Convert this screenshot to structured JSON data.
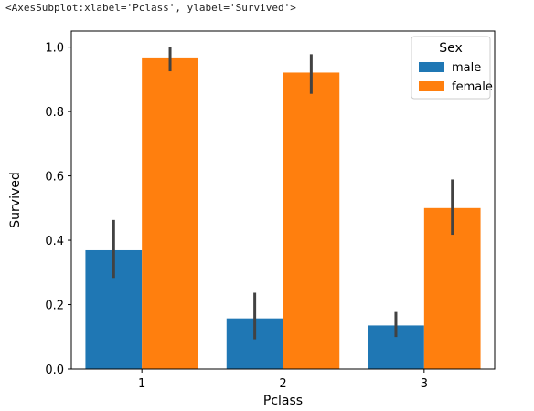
{
  "output_repr": "<AxesSubplot:xlabel='Pclass', ylabel='Survived'>",
  "chart_data": {
    "type": "bar",
    "title": "",
    "xlabel": "Pclass",
    "ylabel": "Survived",
    "categories": [
      "1",
      "2",
      "3"
    ],
    "ylim": [
      0,
      1.05
    ],
    "yticks": [
      0.0,
      0.2,
      0.4,
      0.6,
      0.8,
      1.0
    ],
    "ytick_labels": [
      "0.0",
      "0.2",
      "0.4",
      "0.6",
      "0.8",
      "1.0"
    ],
    "grid": false,
    "legend": {
      "title": "Sex",
      "placement": "top-right"
    },
    "series": [
      {
        "name": "male",
        "color": "#1f77b4",
        "values": [
          0.369,
          0.157,
          0.135
        ],
        "ci": [
          [
            0.283,
            0.463
          ],
          [
            0.092,
            0.237
          ],
          [
            0.099,
            0.177
          ]
        ]
      },
      {
        "name": "female",
        "color": "#ff7f0e",
        "values": [
          0.968,
          0.921,
          0.5
        ],
        "ci": [
          [
            0.925,
            1.0
          ],
          [
            0.855,
            0.978
          ],
          [
            0.417,
            0.589
          ]
        ]
      }
    ],
    "errorbar_color": "#424242"
  }
}
